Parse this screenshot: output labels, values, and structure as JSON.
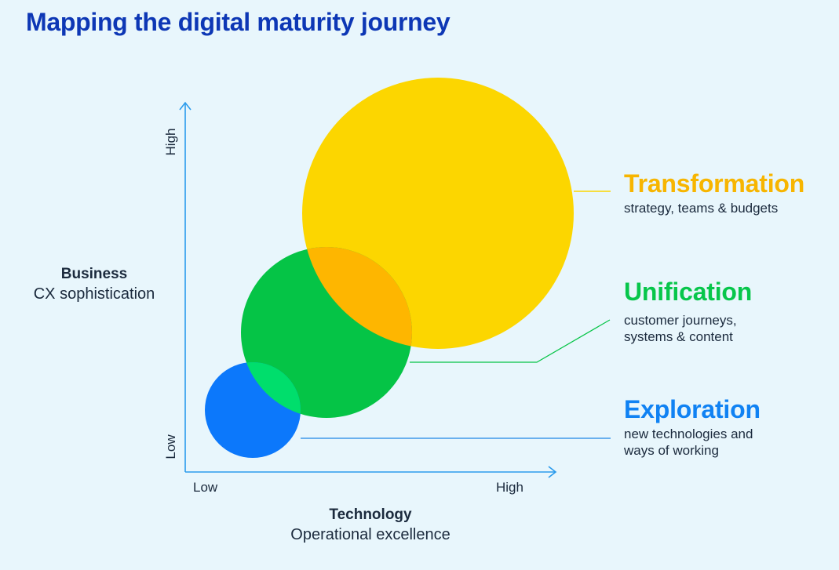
{
  "title": "Mapping the digital maturity journey",
  "y_axis": {
    "label_bold": "Business",
    "label": "CX sophistication",
    "tick_low": "Low",
    "tick_high": "High"
  },
  "x_axis": {
    "label_bold": "Technology",
    "label": "Operational excellence",
    "tick_low": "Low",
    "tick_high": "High"
  },
  "stages": [
    {
      "name": "Transformation",
      "desc_lines": [
        "strategy, teams & budgets"
      ],
      "color": "#f7b500",
      "circle_color": "#fcd600"
    },
    {
      "name": "Unification",
      "desc_lines": [
        "customer journeys,",
        "systems & content"
      ],
      "color": "#07c64b",
      "circle_color": "#05c446"
    },
    {
      "name": "Exploration",
      "desc_lines": [
        "new technologies and",
        "ways of working"
      ],
      "color": "#1082f3",
      "circle_color": "#0c78fb"
    }
  ],
  "colors": {
    "axis": "#2a9bec",
    "overlap_transformation_unification": "#feb600",
    "overlap_unification_exploration": "#00de6c",
    "title": "#0d37b5",
    "background": "#e8f6fc"
  }
}
